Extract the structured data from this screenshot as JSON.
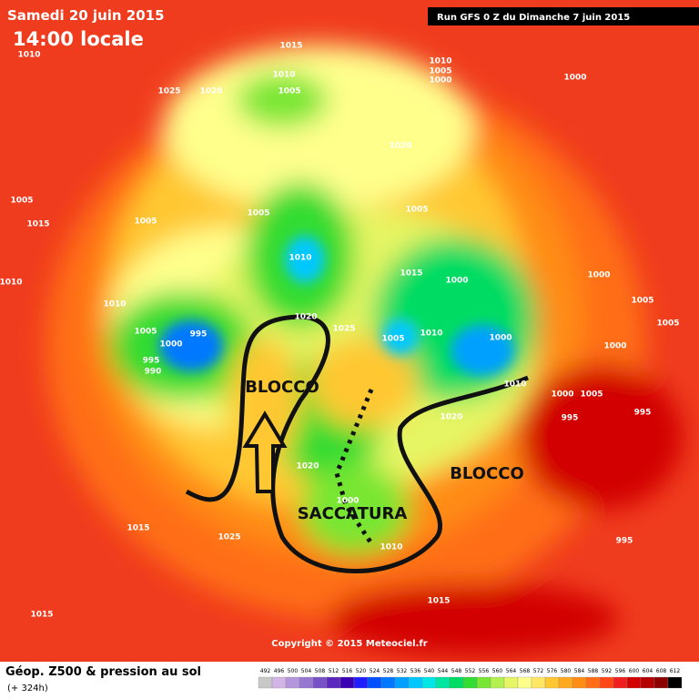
{
  "header": {
    "date": "Samedi 20 juin 2015",
    "time": "14:00 locale",
    "run": "Run GFS 0 Z du Dimanche 7 juin 2015"
  },
  "annotations": [
    "BLOCCO",
    "BLOCCO",
    "SACCATURA"
  ],
  "pressure_labels": [
    "1015",
    "1010",
    "1010",
    "1005",
    "1010",
    "1005",
    "1000",
    "1025",
    "1020",
    "1000",
    "1020",
    "1005",
    "1005",
    "1005",
    "1005",
    "1015",
    "1010",
    "1010",
    "1015",
    "1000",
    "1000",
    "1005",
    "1010",
    "1005",
    "1000",
    "995",
    "995",
    "990",
    "1020",
    "1025",
    "1005",
    "1010",
    "1000",
    "1005",
    "1000",
    "1010",
    "1000",
    "1005",
    "995",
    "995",
    "1020",
    "1020",
    "1000",
    "1010",
    "1015",
    "1025",
    "995",
    "1015",
    "1015"
  ],
  "copyright": "Copyright © 2015 Meteociel.fr",
  "footer": {
    "title": "Géop. Z500 & pression au sol",
    "lead": "(+ 324h)"
  },
  "scale": {
    "labels": [
      492,
      496,
      500,
      504,
      508,
      512,
      516,
      520,
      524,
      528,
      532,
      536,
      540,
      544,
      548,
      552,
      556,
      560,
      564,
      568,
      572,
      576,
      580,
      584,
      588,
      592,
      596,
      600,
      604,
      608,
      612
    ],
    "colors": [
      "#c8c8c8",
      "#d2b4e6",
      "#b496dc",
      "#9678d2",
      "#7850c8",
      "#5a28be",
      "#3c00b4",
      "#1e1eff",
      "#0050ff",
      "#0078ff",
      "#00a0ff",
      "#00c8ff",
      "#00e6e6",
      "#00e6a0",
      "#00dc64",
      "#32dc32",
      "#78e632",
      "#b4f050",
      "#e6f564",
      "#ffff8c",
      "#ffe664",
      "#ffc832",
      "#ffaa1e",
      "#ff8c14",
      "#ff6e14",
      "#ff4614",
      "#f01e1e",
      "#d20000",
      "#b40000",
      "#8c0000",
      "#000000"
    ]
  }
}
